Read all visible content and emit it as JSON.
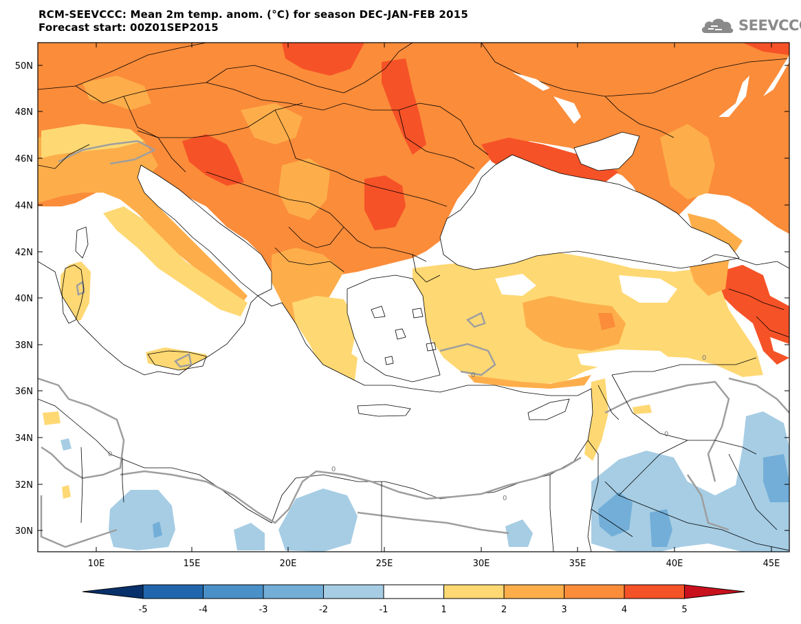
{
  "header": {
    "title_line1": "RCM-SEEVCCC: Mean 2m temp. anom. (°C) for season DEC-JAN-FEB 2015",
    "title_line2": "Forecast start: 00Z01SEP2015",
    "logo_text": "SEEVCCC"
  },
  "map": {
    "lat_labels": [
      "50N",
      "48N",
      "46N",
      "44N",
      "42N",
      "40N",
      "38N",
      "36N",
      "34N",
      "32N",
      "30N"
    ],
    "lon_labels": [
      "10E",
      "15E",
      "20E",
      "25E",
      "30E",
      "35E",
      "40E",
      "45E"
    ],
    "zero_contour_label": "0"
  },
  "colorbar": {
    "labels": [
      "-5",
      "-4",
      "-3",
      "-2",
      "-1",
      "1",
      "2",
      "3",
      "4",
      "5"
    ],
    "colors": [
      "#08306b",
      "#2166ac",
      "#4a90c8",
      "#72aed8",
      "#a6cde4",
      "#ffffff",
      "#fed873",
      "#fdae4a",
      "#fb8c3a",
      "#f65227",
      "#c8111d"
    ]
  }
}
